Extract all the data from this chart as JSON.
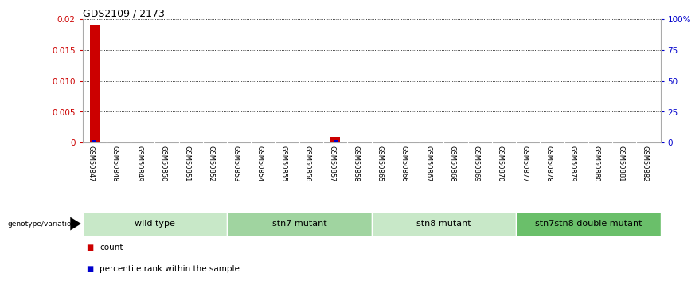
{
  "title": "GDS2109 / 2173",
  "samples": [
    "GSM50847",
    "GSM50848",
    "GSM50849",
    "GSM50850",
    "GSM50851",
    "GSM50852",
    "GSM50853",
    "GSM50854",
    "GSM50855",
    "GSM50856",
    "GSM50857",
    "GSM50858",
    "GSM50865",
    "GSM50866",
    "GSM50867",
    "GSM50868",
    "GSM50869",
    "GSM50870",
    "GSM50877",
    "GSM50878",
    "GSM50879",
    "GSM50880",
    "GSM50881",
    "GSM50882"
  ],
  "count_values": [
    0.019,
    0,
    0,
    0,
    0,
    0,
    0,
    0,
    0,
    0,
    0.001,
    0,
    0,
    0,
    0,
    0,
    0,
    0,
    0,
    0,
    0,
    0,
    0,
    0
  ],
  "percentile_values": [
    2,
    0,
    0,
    0,
    0,
    0,
    0,
    0,
    0,
    0,
    2,
    0,
    0,
    0,
    0,
    0,
    0,
    0,
    0,
    0,
    0,
    0,
    0,
    0
  ],
  "groups": [
    {
      "label": "wild type",
      "start": 0,
      "end": 6,
      "color": "#c8e8c8"
    },
    {
      "label": "stn7 mutant",
      "start": 6,
      "end": 12,
      "color": "#a0d4a0"
    },
    {
      "label": "stn8 mutant",
      "start": 12,
      "end": 18,
      "color": "#c8e8c8"
    },
    {
      "label": "stn7stn8 double mutant",
      "start": 18,
      "end": 24,
      "color": "#6abf6a"
    }
  ],
  "ylim_left": [
    0,
    0.02
  ],
  "ylim_right": [
    0,
    100
  ],
  "yticks_left": [
    0,
    0.005,
    0.01,
    0.015,
    0.02
  ],
  "ytick_labels_left": [
    "0",
    "0.005",
    "0.010",
    "0.015",
    "0.02"
  ],
  "yticks_right": [
    0,
    25,
    50,
    75,
    100
  ],
  "ytick_labels_right": [
    "0",
    "25",
    "50",
    "75",
    "100%"
  ],
  "count_color": "#cc0000",
  "percentile_color": "#0000cc",
  "bg_color": "#ffffff",
  "label_genotype": "genotype/variation",
  "legend_count": "count",
  "legend_pct": "percentile rank within the sample",
  "sample_bar_bg": "#c0c0c0",
  "title_fontsize": 9,
  "tick_fontsize": 7.5,
  "sample_fontsize": 6,
  "group_fontsize": 8
}
